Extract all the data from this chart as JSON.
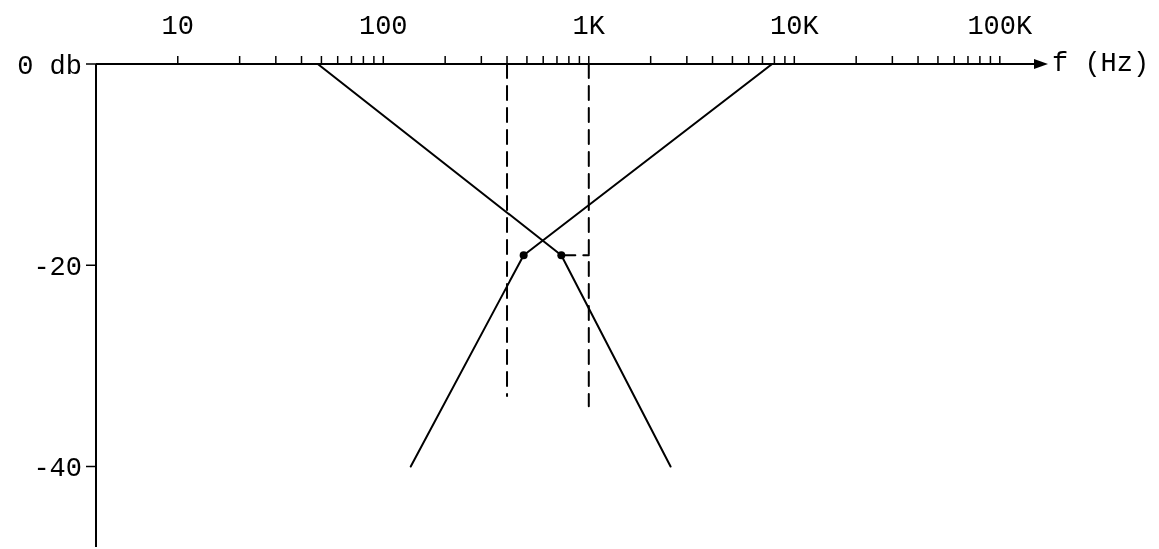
{
  "chart_data": {
    "type": "line",
    "xlabel": "f (Hz)",
    "log": "x",
    "marker": "none",
    "line_style": "solid",
    "series": [
      {
        "color": "#000000",
        "x": [
          48,
          735,
          2500
        ],
        "values": [
          0,
          -19,
          -40
        ]
      },
      {
        "color": "#000000",
        "x": [
          136,
          482,
          7800
        ],
        "values": [
          -40,
          -19,
          0
        ]
      },
      {
        "color": "#000000",
        "line_style": "dashed",
        "x": [
          400,
          400
        ],
        "values": [
          0,
          -33
        ]
      },
      {
        "color": "#000000",
        "line_style": "dashed",
        "x": [
          1000,
          1000
        ],
        "values": [
          0,
          -34
        ]
      },
      {
        "color": "#000000",
        "line_style": "dashed",
        "x": [
          735,
          1000
        ],
        "values": [
          -19,
          -19
        ]
      },
      {
        "type": "scatter",
        "color": "#000000",
        "marker": "circle",
        "x": [
          482,
          735
        ],
        "values": [
          -19,
          -19
        ]
      }
    ],
    "xlim": [
      4,
      150000
    ],
    "xticks": [
      10,
      {
        "value": 20,
        "label": null
      },
      {
        "value": 30,
        "label": null
      },
      {
        "value": 40,
        "label": null
      },
      {
        "value": 50,
        "label": null
      },
      {
        "value": 60,
        "label": null
      },
      {
        "value": 70,
        "label": null
      },
      {
        "value": 80,
        "label": null
      },
      {
        "value": 90,
        "label": null
      },
      100,
      {
        "value": 200,
        "label": null
      },
      {
        "value": 300,
        "label": null
      },
      {
        "value": 400,
        "label": null
      },
      {
        "value": 500,
        "label": null
      },
      {
        "value": 600,
        "label": null
      },
      {
        "value": 700,
        "label": null
      },
      {
        "value": 800,
        "label": null
      },
      {
        "value": 900,
        "label": null
      },
      {
        "value": 1000,
        "label": "1K"
      },
      {
        "value": 2000,
        "label": null
      },
      {
        "value": 3000,
        "label": null
      },
      {
        "value": 4000,
        "label": null
      },
      {
        "value": 5000,
        "label": null
      },
      {
        "value": 6000,
        "label": null
      },
      {
        "value": 7000,
        "label": null
      },
      {
        "value": 8000,
        "label": null
      },
      {
        "value": 9000,
        "label": null
      },
      {
        "value": 10000,
        "label": "10K"
      },
      {
        "value": 20000,
        "label": null
      },
      {
        "value": 30000,
        "label": null
      },
      {
        "value": 40000,
        "label": null
      },
      {
        "value": 50000,
        "label": null
      },
      {
        "value": 60000,
        "label": null
      },
      {
        "value": 70000,
        "label": null
      },
      {
        "value": 80000,
        "label": null
      },
      {
        "value": 90000,
        "label": null
      },
      {
        "value": 100000,
        "label": "100K"
      }
    ],
    "ylim": [
      -48,
      0
    ],
    "yticks": [
      {
        "value": 0,
        "label": "0 db"
      },
      -20,
      -40
    ]
  }
}
